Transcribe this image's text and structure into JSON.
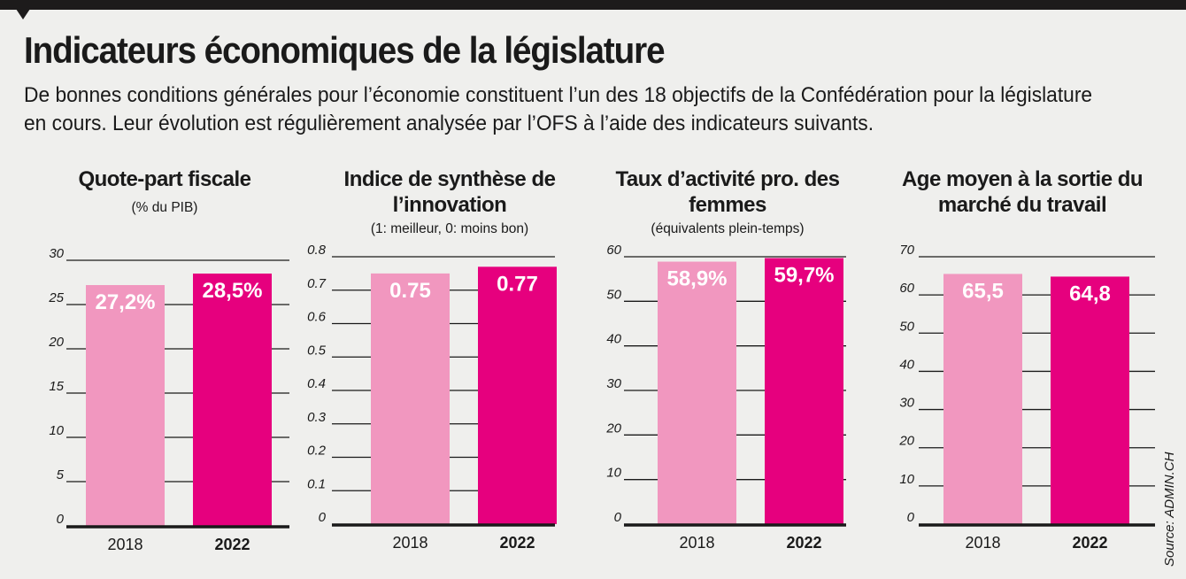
{
  "title": "Indicateurs économiques de la législature",
  "subtitle": "De bonnes conditions générales pour l’économie constituent l’un des 18 objectifs de la Confédération pour la législature en cours. Leur évolution est régulièrement analysée par l’OFS à l’aide des indicateurs suivants.",
  "source": "Source: ADMIN.CH",
  "colors": {
    "bar_2018": "#f197bf",
    "bar_2022": "#e6007e",
    "background": "#efefed"
  },
  "chart_data": [
    {
      "type": "bar",
      "title": "Quote-part fiscale",
      "note": "(% du PIB)",
      "categories": [
        "2018",
        "2022"
      ],
      "values": [
        27.2,
        28.5
      ],
      "data_labels": [
        "27,2%",
        "28,5%"
      ],
      "ylim": [
        0,
        30
      ],
      "ticks": [
        "0",
        "5",
        "10",
        "15",
        "20",
        "25",
        "30"
      ],
      "grid": true
    },
    {
      "type": "bar",
      "title": "Indice de synthèse de l’innovation",
      "note": "(1: meilleur, 0: moins bon)",
      "categories": [
        "2018",
        "2022"
      ],
      "values": [
        0.75,
        0.77
      ],
      "data_labels": [
        "0.75",
        "0.77"
      ],
      "ylim": [
        0,
        0.8
      ],
      "ticks": [
        "0",
        "0.1",
        "0.2",
        "0.3",
        "0.4",
        "0.5",
        "0.6",
        "0.7",
        "0.8"
      ],
      "grid": true
    },
    {
      "type": "bar",
      "title": "Taux d’activité pro. des femmes",
      "note": "(équivalents plein-temps)",
      "categories": [
        "2018",
        "2022"
      ],
      "values": [
        58.9,
        59.7
      ],
      "data_labels": [
        "58,9%",
        "59,7%"
      ],
      "ylim": [
        0,
        60
      ],
      "ticks": [
        "0",
        "10",
        "20",
        "30",
        "40",
        "50",
        "60"
      ],
      "grid": true
    },
    {
      "type": "bar",
      "title": "Age moyen à la sortie du marché du travail",
      "note": "",
      "categories": [
        "2018",
        "2022"
      ],
      "values": [
        65.5,
        64.8
      ],
      "data_labels": [
        "65,5",
        "64,8"
      ],
      "ylim": [
        0,
        70
      ],
      "ticks": [
        "0",
        "10",
        "20",
        "30",
        "40",
        "50",
        "60",
        "70"
      ],
      "grid": true
    }
  ]
}
